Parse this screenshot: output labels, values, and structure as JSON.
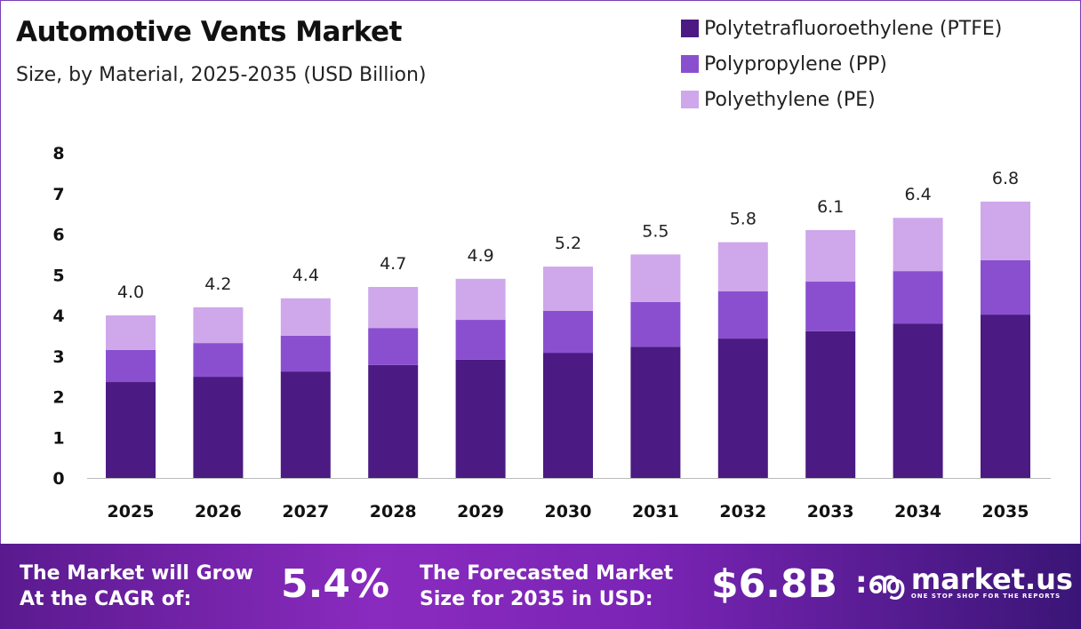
{
  "chart_data": {
    "type": "stacked-bar",
    "title": "Automotive Vents Market",
    "subtitle": "Size, by Material, 2025-2035 (USD Billion)",
    "categories": [
      "2025",
      "2026",
      "2027",
      "2028",
      "2029",
      "2030",
      "2031",
      "2032",
      "2033",
      "2034",
      "2035"
    ],
    "series": [
      {
        "name": "Polytetrafluoroethylene (PTFE)",
        "color": "#4b1a82",
        "values": [
          2.36,
          2.49,
          2.62,
          2.78,
          2.91,
          3.08,
          3.23,
          3.43,
          3.61,
          3.8,
          4.02
        ]
      },
      {
        "name": "Polypropylene (PP)",
        "color": "#8a4fcf",
        "values": [
          0.79,
          0.83,
          0.88,
          0.91,
          0.98,
          1.03,
          1.1,
          1.16,
          1.22,
          1.29,
          1.34
        ]
      },
      {
        "name": "Polyethylene (PE)",
        "color": "#cfa7eb",
        "values": [
          0.85,
          0.88,
          0.92,
          1.01,
          1.01,
          1.09,
          1.17,
          1.21,
          1.27,
          1.31,
          1.44
        ]
      }
    ],
    "totals": [
      "4.0",
      "4.2",
      "4.4",
      "4.7",
      "4.9",
      "5.2",
      "5.5",
      "5.8",
      "6.1",
      "6.4",
      "6.8"
    ],
    "ylim": [
      0,
      8
    ],
    "yticks": [
      "0",
      "1",
      "2",
      "3",
      "4",
      "5",
      "6",
      "7",
      "8"
    ],
    "grid": false,
    "legend": "top-right"
  },
  "footer": {
    "cagr_label_1": "The Market will Grow",
    "cagr_label_2": "At the CAGR of:",
    "cagr_value": "5.4%",
    "forecast_label_1": "The Forecasted Market",
    "forecast_label_2": "Size for 2035 in USD:",
    "forecast_value": "$6.8B",
    "logo_name": "market.us",
    "logo_tagline": "ONE STOP SHOP FOR THE REPORTS"
  }
}
